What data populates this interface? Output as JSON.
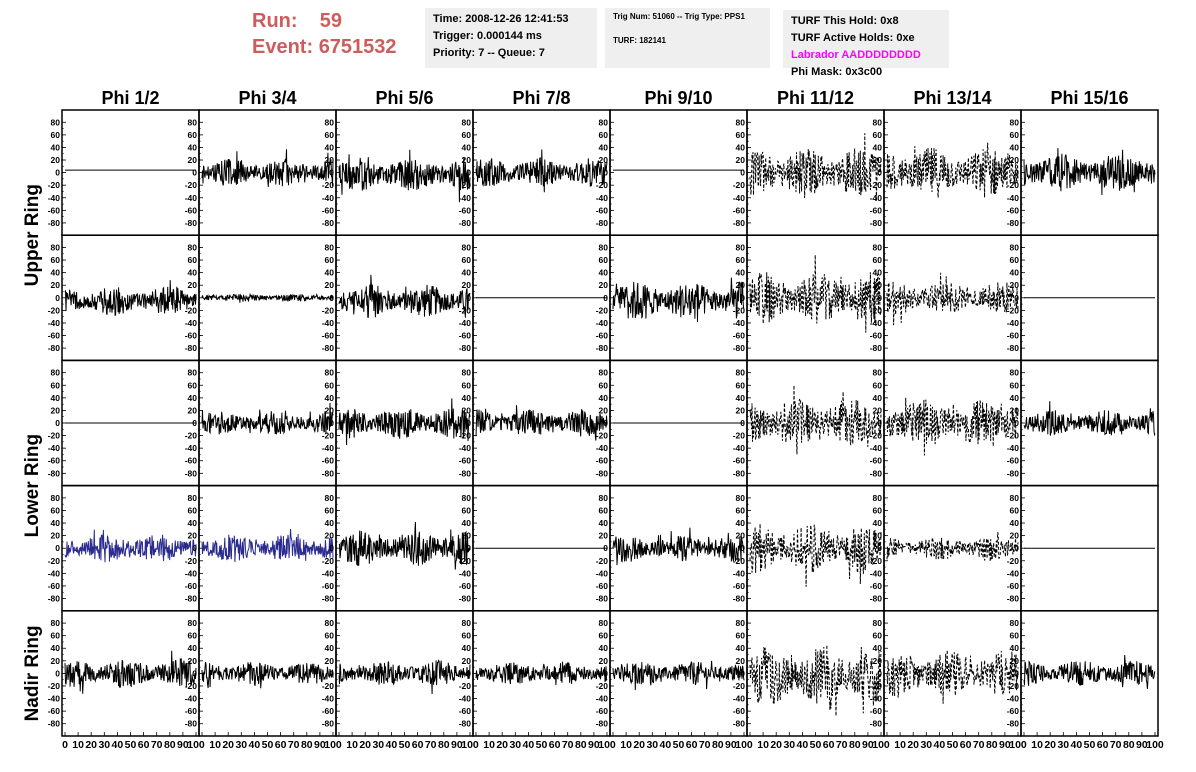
{
  "header": {
    "run_label": "Run:",
    "run_value": "59",
    "event_label": "Event:",
    "event_value": "6751532",
    "time_line": "Time: 2008-12-26 12:41:53",
    "trigger_line": "Trigger: 0.000144 ms",
    "priority_line": "Priority: 7 -- Queue: 7",
    "trig_line": "Trig Num: 51060 -- Trig Type: PPS1",
    "turf_line": "TURF: 182141",
    "turf_hold_line": "TURF This Hold: 0x8",
    "turf_active_line": "TURF Active Holds: 0xe",
    "labrador_line": "Labrador AADDDDDDDD",
    "phi_mask_line": "Phi Mask: 0x3c00"
  },
  "colors": {
    "labrador": "#ff00ff",
    "run_event": "#cd5c5c",
    "highlight_trace": "#2b2b8f"
  },
  "chart_data": {
    "type": "line",
    "columns": [
      "Phi 1/2",
      "Phi 3/4",
      "Phi 5/6",
      "Phi 7/8",
      "Phi 9/10",
      "Phi 11/12",
      "Phi 13/14",
      "Phi 15/16"
    ],
    "row_labels": [
      "Upper Ring",
      "Lower Ring",
      "Nadir Ring"
    ],
    "ylim": [
      -90,
      90
    ],
    "y_ticks": [
      "80",
      "60",
      "40",
      "20",
      "0",
      "-20",
      "-40",
      "-60",
      "-80"
    ],
    "xlim": [
      0,
      100
    ],
    "x_ticks": [
      "0",
      "10",
      "20",
      "30",
      "40",
      "50",
      "60",
      "70",
      "80",
      "90",
      "100"
    ],
    "panels": [
      [
        {
          "style": "flat",
          "value": 4
        },
        {
          "style": "noise",
          "amp": 14,
          "offset": 0,
          "seed": 11
        },
        {
          "style": "noise",
          "amp": 17,
          "offset": -3,
          "seed": 12
        },
        {
          "style": "noise",
          "amp": 15,
          "offset": 0,
          "seed": 13
        },
        {
          "style": "flat",
          "value": 4
        },
        {
          "style": "dashed",
          "amp": 26,
          "offset": 0,
          "seed": 14
        },
        {
          "style": "dashed",
          "amp": 26,
          "offset": 0,
          "seed": 15
        },
        {
          "style": "noise",
          "amp": 19,
          "offset": 0,
          "seed": 16
        }
      ],
      [
        {
          "style": "noise",
          "amp": 15,
          "offset": -5,
          "seed": 21
        },
        {
          "style": "noise",
          "amp": 4,
          "offset": 0,
          "seed": 22
        },
        {
          "style": "noise",
          "amp": 17,
          "offset": -5,
          "seed": 23
        },
        {
          "style": "flat",
          "value": 0
        },
        {
          "style": "noise",
          "amp": 20,
          "offset": -5,
          "seed": 24
        },
        {
          "style": "dashed",
          "amp": 26,
          "offset": 0,
          "seed": 25
        },
        {
          "style": "dashed",
          "amp": 17,
          "offset": 0,
          "seed": 26
        },
        {
          "style": "flat",
          "value": 0
        }
      ],
      [
        {
          "style": "flat",
          "value": 0
        },
        {
          "style": "noise",
          "amp": 12,
          "offset": 0,
          "seed": 31
        },
        {
          "style": "noise",
          "amp": 16,
          "offset": 0,
          "seed": 32
        },
        {
          "style": "noise",
          "amp": 14,
          "offset": 0,
          "seed": 33
        },
        {
          "style": "flat",
          "value": 0
        },
        {
          "style": "dashed",
          "amp": 25,
          "offset": 0,
          "seed": 34
        },
        {
          "style": "dashed",
          "amp": 24,
          "offset": 0,
          "seed": 35
        },
        {
          "style": "noise",
          "amp": 13,
          "offset": 0,
          "seed": 36
        }
      ],
      [
        {
          "style": "noise",
          "amp": 14,
          "offset": 0,
          "seed": 41,
          "color": "#2b2b8f"
        },
        {
          "style": "noise",
          "amp": 14,
          "offset": 0,
          "seed": 42,
          "color": "#2b2b8f"
        },
        {
          "style": "noise",
          "amp": 18,
          "offset": 0,
          "seed": 43
        },
        {
          "style": "flat",
          "value": 0
        },
        {
          "style": "noise",
          "amp": 14,
          "offset": 0,
          "seed": 44
        },
        {
          "style": "dashed",
          "amp": 26,
          "offset": 0,
          "seed": 45
        },
        {
          "style": "dashed",
          "amp": 12,
          "offset": 0,
          "seed": 46
        },
        {
          "style": "flat",
          "value": 0
        }
      ],
      [
        {
          "style": "noise",
          "amp": 15,
          "offset": 0,
          "seed": 51
        },
        {
          "style": "noise",
          "amp": 12,
          "offset": 0,
          "seed": 52
        },
        {
          "style": "noise",
          "amp": 13,
          "offset": 0,
          "seed": 53
        },
        {
          "style": "noise",
          "amp": 12,
          "offset": 0,
          "seed": 54
        },
        {
          "style": "noise",
          "amp": 12,
          "offset": 0,
          "seed": 55
        },
        {
          "style": "dashed",
          "amp": 30,
          "offset": -5,
          "seed": 56
        },
        {
          "style": "dashed",
          "amp": 24,
          "offset": 0,
          "seed": 57
        },
        {
          "style": "noise",
          "amp": 13,
          "offset": 0,
          "seed": 58
        }
      ]
    ]
  }
}
